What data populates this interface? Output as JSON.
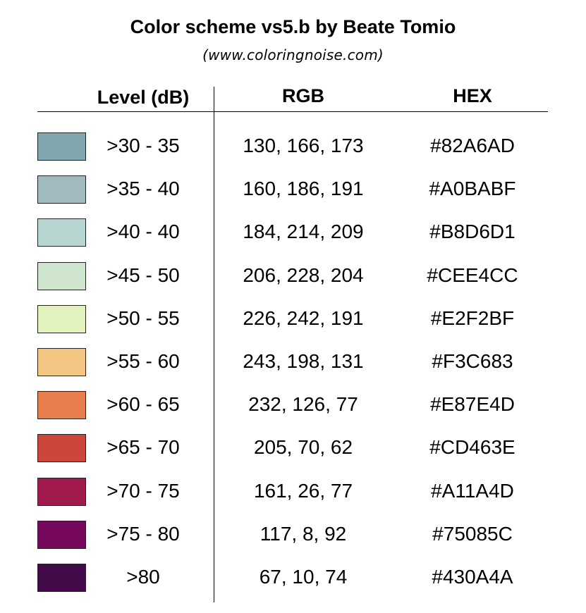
{
  "header": {
    "title": "Color scheme vs5.b by Beate Tomio",
    "subtitle": "(www.coloringnoise.com)"
  },
  "table": {
    "columns": {
      "level": "Level (dB)",
      "rgb": "RGB",
      "hex": "HEX"
    },
    "rows": [
      {
        "level": ">30 - 35",
        "rgb": "130, 166, 173",
        "hex": "#82A6AD",
        "color": "#82A6AD"
      },
      {
        "level": ">35 - 40",
        "rgb": "160, 186, 191",
        "hex": "#A0BABF",
        "color": "#A0BABF"
      },
      {
        "level": ">40 - 40",
        "rgb": "184, 214, 209",
        "hex": "#B8D6D1",
        "color": "#B8D6D1"
      },
      {
        "level": ">45 - 50",
        "rgb": "206, 228, 204",
        "hex": "#CEE4CC",
        "color": "#CEE4CC"
      },
      {
        "level": ">50 - 55",
        "rgb": "226, 242, 191",
        "hex": "#E2F2BF",
        "color": "#E2F2BF"
      },
      {
        "level": ">55 - 60",
        "rgb": "243, 198, 131",
        "hex": "#F3C683",
        "color": "#F3C683"
      },
      {
        "level": ">60 - 65",
        "rgb": "232, 126, 77",
        "hex": "#E87E4D",
        "color": "#E87E4D"
      },
      {
        "level": ">65 - 70",
        "rgb": "205, 70, 62",
        "hex": "#CD463E",
        "color": "#CD463E"
      },
      {
        "level": ">70 - 75",
        "rgb": "161, 26, 77",
        "hex": "#A11A4D",
        "color": "#A11A4D"
      },
      {
        "level": ">75 - 80",
        "rgb": "117, 8, 92",
        "hex": "#75085C",
        "color": "#75085C"
      },
      {
        "level": ">80",
        "rgb": "67, 10, 74",
        "hex": "#430A4A",
        "color": "#430A4A"
      }
    ]
  }
}
